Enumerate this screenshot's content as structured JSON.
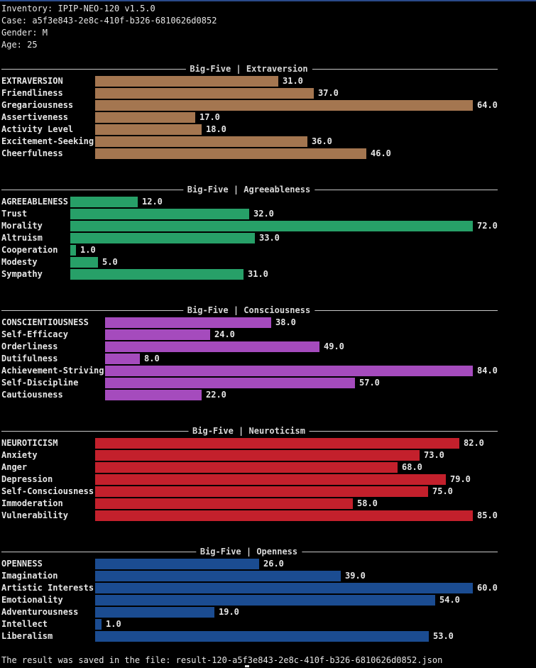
{
  "header": {
    "inventory": "Inventory: IPIP-NEO-120 v1.5.0",
    "case": "Case: a5f3e843-2e8c-410f-b326-6810626d0852",
    "gender": "Gender: M",
    "age": "Age: 25"
  },
  "scale_max": 84,
  "colors": {
    "extraversion": "#a47650",
    "agreeableness": "#27a068",
    "conscientiousness": "#a54bbd",
    "neuroticism": "#c3202c",
    "openness": "#1b4c91"
  },
  "sections": [
    {
      "id": "extraversion",
      "title": "Big-Five | Extraversion",
      "color": "#a47650",
      "rows": [
        {
          "label": "EXTRAVERSION",
          "value": 31.0,
          "value_text": "31.0"
        },
        {
          "label": "Friendliness",
          "value": 37.0,
          "value_text": "37.0"
        },
        {
          "label": "Gregariousness",
          "value": 64.0,
          "value_text": "64.0"
        },
        {
          "label": "Assertiveness",
          "value": 17.0,
          "value_text": "17.0"
        },
        {
          "label": "Activity Level",
          "value": 18.0,
          "value_text": "18.0"
        },
        {
          "label": "Excitement-Seeking",
          "value": 36.0,
          "value_text": "36.0"
        },
        {
          "label": "Cheerfulness",
          "value": 46.0,
          "value_text": "46.0"
        }
      ]
    },
    {
      "id": "agreeableness",
      "title": "Big-Five | Agreeableness",
      "color": "#27a068",
      "rows": [
        {
          "label": "AGREEABLENESS",
          "value": 12.0,
          "value_text": "12.0"
        },
        {
          "label": "Trust",
          "value": 32.0,
          "value_text": "32.0"
        },
        {
          "label": "Morality",
          "value": 72.0,
          "value_text": "72.0"
        },
        {
          "label": "Altruism",
          "value": 33.0,
          "value_text": "33.0"
        },
        {
          "label": "Cooperation",
          "value": 1.0,
          "value_text": "1.0"
        },
        {
          "label": "Modesty",
          "value": 5.0,
          "value_text": "5.0"
        },
        {
          "label": "Sympathy",
          "value": 31.0,
          "value_text": "31.0"
        }
      ]
    },
    {
      "id": "conscientiousness",
      "title": "Big-Five | Consciousness",
      "color": "#a54bbd",
      "rows": [
        {
          "label": "CONSCIENTIOUSNESS",
          "value": 38.0,
          "value_text": "38.0"
        },
        {
          "label": "Self-Efficacy",
          "value": 24.0,
          "value_text": "24.0"
        },
        {
          "label": "Orderliness",
          "value": 49.0,
          "value_text": "49.0"
        },
        {
          "label": "Dutifulness",
          "value": 8.0,
          "value_text": "8.0"
        },
        {
          "label": "Achievement-Striving",
          "value": 84.0,
          "value_text": "84.0"
        },
        {
          "label": "Self-Discipline",
          "value": 57.0,
          "value_text": "57.0"
        },
        {
          "label": "Cautiousness",
          "value": 22.0,
          "value_text": "22.0"
        }
      ]
    },
    {
      "id": "neuroticism",
      "title": "Big-Five | Neuroticism",
      "color": "#c3202c",
      "rows": [
        {
          "label": "NEUROTICISM",
          "value": 82.0,
          "value_text": "82.0"
        },
        {
          "label": "Anxiety",
          "value": 73.0,
          "value_text": "73.0"
        },
        {
          "label": "Anger",
          "value": 68.0,
          "value_text": "68.0"
        },
        {
          "label": "Depression",
          "value": 79.0,
          "value_text": "79.0"
        },
        {
          "label": "Self-Consciousness",
          "value": 75.0,
          "value_text": "75.0"
        },
        {
          "label": "Immoderation",
          "value": 58.0,
          "value_text": "58.0"
        },
        {
          "label": "Vulnerability",
          "value": 85.0,
          "value_text": "85.0"
        }
      ]
    },
    {
      "id": "openness",
      "title": "Big-Five | Openness",
      "color": "#1b4c91",
      "rows": [
        {
          "label": "OPENNESS",
          "value": 26.0,
          "value_text": "26.0"
        },
        {
          "label": "Imagination",
          "value": 39.0,
          "value_text": "39.0"
        },
        {
          "label": "Artistic Interests",
          "value": 60.0,
          "value_text": "60.0"
        },
        {
          "label": "Emotionality",
          "value": 54.0,
          "value_text": "54.0"
        },
        {
          "label": "Adventurousness",
          "value": 19.0,
          "value_text": "19.0"
        },
        {
          "label": "Intellect",
          "value": 1.0,
          "value_text": "1.0"
        },
        {
          "label": "Liberalism",
          "value": 53.0,
          "value_text": "53.0"
        }
      ]
    }
  ],
  "footer": {
    "message": "The result was saved in the file: result-120-a5f3e843-2e8c-410f-b326-6810626d0852.json"
  }
}
